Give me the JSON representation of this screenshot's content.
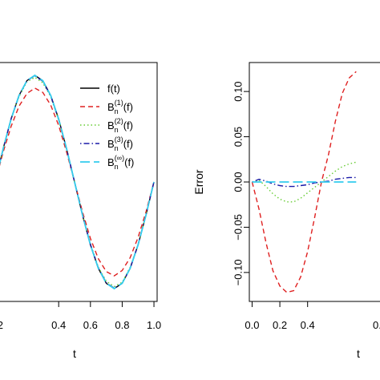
{
  "chart_data": [
    {
      "type": "line",
      "panel": "left",
      "xlabel": "t",
      "ylabel": "",
      "xlim": [
        -0.02,
        1.02
      ],
      "ylim": [
        -1.12,
        1.12
      ],
      "xticks": [
        0.4,
        0.6,
        0.8,
        1.0
      ],
      "xtick_labels": [
        "0.4",
        "0.6",
        "0.8",
        "1.0"
      ],
      "partial_xtick_label": "2",
      "legend_placement": "top-right",
      "legend": [
        {
          "main": "f(t)",
          "sup": "",
          "tail": ""
        },
        {
          "main": "B",
          "sub": "n",
          "sup": "(1)",
          "tail": "(f)"
        },
        {
          "main": "B",
          "sub": "n",
          "sup": "(2)",
          "tail": "(f)"
        },
        {
          "main": "B",
          "sub": "n",
          "sup": "(3)",
          "tail": "(f)"
        },
        {
          "main": "B",
          "sub": "n",
          "sup": "(∞)",
          "tail": "(f)"
        }
      ],
      "series": [
        {
          "name": "f(t)",
          "color": "#000000",
          "dash": "solid",
          "x": [
            0.0,
            0.05,
            0.1,
            0.15,
            0.2,
            0.25,
            0.3,
            0.35,
            0.4,
            0.45,
            0.5,
            0.55,
            0.6,
            0.65,
            0.7,
            0.75,
            0.8,
            0.85,
            0.9,
            0.95,
            1.0
          ],
          "y": [
            0.0,
            0.31,
            0.59,
            0.81,
            0.95,
            1.0,
            0.95,
            0.81,
            0.59,
            0.31,
            0.0,
            -0.31,
            -0.59,
            -0.81,
            -0.95,
            -1.0,
            -0.95,
            -0.81,
            -0.59,
            -0.31,
            0.0
          ]
        },
        {
          "name": "B_n^(1)(f)",
          "color": "#df2020",
          "dash": "dashed",
          "x": [
            0.0,
            0.05,
            0.1,
            0.15,
            0.2,
            0.25,
            0.3,
            0.35,
            0.4,
            0.45,
            0.5,
            0.55,
            0.6,
            0.65,
            0.7,
            0.75,
            0.8,
            0.85,
            0.9,
            0.95,
            1.0
          ],
          "y": [
            0.0,
            0.28,
            0.52,
            0.71,
            0.83,
            0.88,
            0.84,
            0.72,
            0.53,
            0.28,
            0.0,
            -0.28,
            -0.53,
            -0.72,
            -0.84,
            -0.88,
            -0.83,
            -0.71,
            -0.52,
            -0.28,
            0.0
          ]
        },
        {
          "name": "B_n^(2)(f)",
          "color": "#66cc33",
          "dash": "dotted",
          "x": [
            0.0,
            0.05,
            0.1,
            0.15,
            0.2,
            0.25,
            0.3,
            0.35,
            0.4,
            0.45,
            0.5,
            0.55,
            0.6,
            0.65,
            0.7,
            0.75,
            0.8,
            0.85,
            0.9,
            0.95,
            1.0
          ],
          "y": [
            0.0,
            0.31,
            0.59,
            0.8,
            0.94,
            0.98,
            0.93,
            0.8,
            0.58,
            0.31,
            0.0,
            -0.31,
            -0.58,
            -0.8,
            -0.93,
            -0.98,
            -0.94,
            -0.8,
            -0.59,
            -0.31,
            0.0
          ]
        },
        {
          "name": "B_n^(3)(f)",
          "color": "#1a1aa8",
          "dash": "dotdash",
          "x": [
            0.0,
            0.05,
            0.1,
            0.15,
            0.2,
            0.25,
            0.3,
            0.35,
            0.4,
            0.45,
            0.5,
            0.55,
            0.6,
            0.65,
            0.7,
            0.75,
            0.8,
            0.85,
            0.9,
            0.95,
            1.0
          ],
          "y": [
            0.0,
            0.31,
            0.59,
            0.81,
            0.95,
            0.995,
            0.945,
            0.805,
            0.585,
            0.31,
            0.0,
            -0.31,
            -0.585,
            -0.805,
            -0.945,
            -0.995,
            -0.95,
            -0.81,
            -0.59,
            -0.31,
            0.0
          ]
        },
        {
          "name": "B_n^(∞)(f)",
          "color": "#33ccee",
          "dash": "longdash",
          "x": [
            0.0,
            0.05,
            0.1,
            0.15,
            0.2,
            0.25,
            0.3,
            0.35,
            0.4,
            0.45,
            0.5,
            0.55,
            0.6,
            0.65,
            0.7,
            0.75,
            0.8,
            0.85,
            0.9,
            0.95,
            1.0
          ],
          "y": [
            0.0,
            0.31,
            0.59,
            0.81,
            0.95,
            1.0,
            0.95,
            0.81,
            0.59,
            0.31,
            0.0,
            -0.31,
            -0.59,
            -0.81,
            -0.95,
            -1.0,
            -0.95,
            -0.81,
            -0.59,
            -0.31,
            0.0
          ]
        }
      ]
    },
    {
      "type": "line",
      "panel": "right",
      "xlabel": "t",
      "ylabel": "Error",
      "xlim": [
        -0.02,
        1.02
      ],
      "ylim": [
        -0.132,
        0.132
      ],
      "xticks": [
        0.0,
        0.2,
        0.4
      ],
      "xtick_labels": [
        "0.0",
        "0.2",
        "0.4"
      ],
      "partial_xtick_label": "0.",
      "yticks": [
        -0.1,
        -0.05,
        0.0,
        0.05,
        0.1
      ],
      "ytick_labels": [
        "−0.10",
        "−0.05",
        "0.00",
        "0.05",
        "0.10"
      ],
      "series": [
        {
          "name": "B_n^(1)(f)",
          "color": "#df2020",
          "dash": "dashed",
          "x": [
            0.0,
            0.05,
            0.1,
            0.15,
            0.2,
            0.25,
            0.3,
            0.35,
            0.4,
            0.45,
            0.5,
            0.55,
            0.6,
            0.65,
            0.7,
            0.75
          ],
          "y": [
            0.0,
            -0.03,
            -0.067,
            -0.098,
            -0.115,
            -0.122,
            -0.12,
            -0.105,
            -0.077,
            -0.04,
            0.0,
            0.03,
            0.067,
            0.098,
            0.115,
            0.122
          ]
        },
        {
          "name": "B_n^(2)(f)",
          "color": "#66cc33",
          "dash": "dotted",
          "x": [
            0.0,
            0.05,
            0.1,
            0.15,
            0.2,
            0.25,
            0.3,
            0.35,
            0.4,
            0.45,
            0.5,
            0.55,
            0.6,
            0.65,
            0.7,
            0.75
          ],
          "y": [
            0.0,
            0.002,
            -0.005,
            -0.013,
            -0.019,
            -0.022,
            -0.022,
            -0.018,
            -0.012,
            -0.006,
            0.0,
            0.006,
            0.012,
            0.017,
            0.02,
            0.022
          ]
        },
        {
          "name": "B_n^(3)(f)",
          "color": "#1a1aa8",
          "dash": "dotdash",
          "x": [
            0.0,
            0.05,
            0.1,
            0.15,
            0.2,
            0.25,
            0.3,
            0.35,
            0.4,
            0.45,
            0.5,
            0.55,
            0.6,
            0.65,
            0.7,
            0.75
          ],
          "y": [
            0.0,
            0.003,
            0.001,
            -0.002,
            -0.004,
            -0.005,
            -0.005,
            -0.004,
            -0.003,
            -0.001,
            0.0,
            0.001,
            0.003,
            0.004,
            0.005,
            0.005
          ]
        },
        {
          "name": "B_n^(∞)(f)",
          "color": "#33ccee",
          "dash": "longdash",
          "x": [
            0.0,
            0.05,
            0.1,
            0.15,
            0.2,
            0.25,
            0.3,
            0.35,
            0.4,
            0.45,
            0.5,
            0.55,
            0.6,
            0.65,
            0.7,
            0.75
          ],
          "y": [
            0.0,
            0.0,
            0.0,
            0.0,
            0.0,
            0.0,
            0.0,
            0.0,
            0.0,
            0.0,
            0.0,
            0.0,
            0.0,
            0.0,
            0.0,
            0.0
          ]
        }
      ]
    }
  ]
}
